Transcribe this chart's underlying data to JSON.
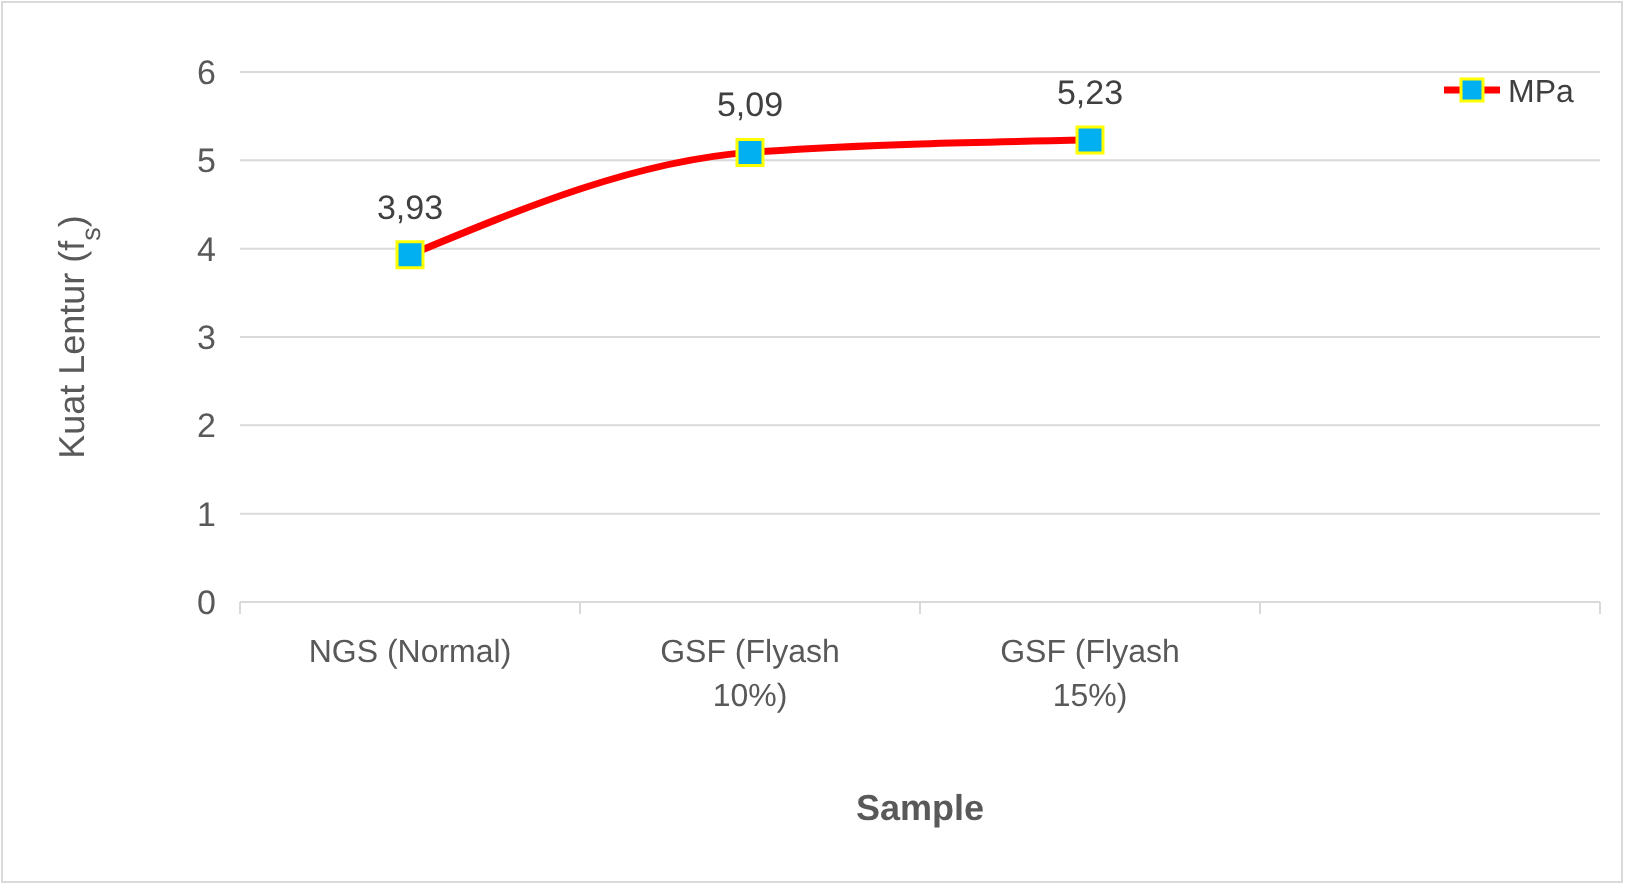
{
  "chart_data": {
    "type": "line",
    "xlabel": "Sample",
    "ylabel": "Kuat Lentur (f$_{s}$)",
    "categories": [
      "NGS (Normal)",
      "GSF (Flyash 10%)",
      "GSF (Flyash 15%)",
      null
    ],
    "series": [
      {
        "name": "MPa",
        "color": "#ff0000",
        "values": [
          3.93,
          5.09,
          5.23,
          null
        ],
        "value_labels": [
          "3,93",
          "5,09",
          "5,23",
          null
        ]
      }
    ],
    "ylim": [
      0,
      6
    ],
    "yticks": [
      0,
      1,
      2,
      3,
      4,
      5,
      6
    ],
    "grid": "y",
    "legend": "top right",
    "marker": "square",
    "line_style": "solid"
  }
}
